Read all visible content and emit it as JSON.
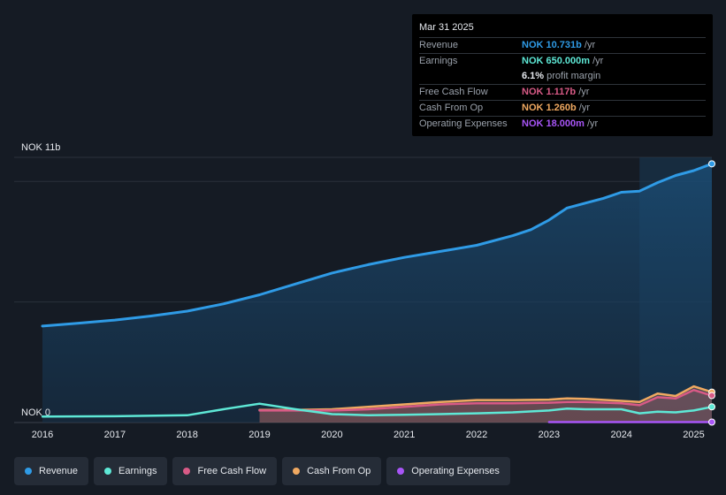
{
  "tooltip": {
    "date": "Mar 31 2025",
    "rows": [
      {
        "label": "Revenue",
        "value": "NOK 10.731b",
        "unit": "/yr",
        "color": "#2f9be6"
      },
      {
        "label": "Earnings",
        "value": "NOK 650.000m",
        "unit": "/yr",
        "color": "#5ee8d6"
      },
      {
        "label": "",
        "value": "6.1%",
        "unit": "profit margin",
        "color": "#e6e9ee"
      },
      {
        "label": "Free Cash Flow",
        "value": "NOK 1.117b",
        "unit": "/yr",
        "color": "#d85a86"
      },
      {
        "label": "Cash From Op",
        "value": "NOK 1.260b",
        "unit": "/yr",
        "color": "#f0a961"
      },
      {
        "label": "Operating Expenses",
        "value": "NOK 18.000m",
        "unit": "/yr",
        "color": "#a855f7"
      }
    ]
  },
  "legend": [
    {
      "label": "Revenue",
      "color": "#2f9be6"
    },
    {
      "label": "Earnings",
      "color": "#5ee8d6"
    },
    {
      "label": "Free Cash Flow",
      "color": "#d85a86"
    },
    {
      "label": "Cash From Op",
      "color": "#f0a961"
    },
    {
      "label": "Operating Expenses",
      "color": "#a855f7"
    }
  ],
  "chart_data": {
    "type": "area",
    "title": "",
    "ylabel_top": "NOK 11b",
    "ylabel_bottom": "NOK 0",
    "ylim": [
      0,
      11
    ],
    "xlim": [
      2015.8,
      2025.25
    ],
    "x_ticks": [
      "2016",
      "2017",
      "2018",
      "2019",
      "2020",
      "2021",
      "2022",
      "2023",
      "2024",
      "2025"
    ],
    "x_tick_values": [
      2016,
      2017,
      2018,
      2019,
      2020,
      2021,
      2022,
      2023,
      2024,
      2025
    ],
    "highlight_from": 2024.25,
    "series": [
      {
        "name": "Revenue",
        "color": "#2f9be6",
        "fill": true,
        "x": [
          2016,
          2016.5,
          2017,
          2017.5,
          2018,
          2018.5,
          2019,
          2019.5,
          2020,
          2020.5,
          2021,
          2021.5,
          2022,
          2022.5,
          2022.75,
          2023,
          2023.25,
          2023.5,
          2023.75,
          2024,
          2024.25,
          2024.5,
          2024.75,
          2025,
          2025.25
        ],
        "y": [
          4.0,
          4.12,
          4.25,
          4.42,
          4.62,
          4.92,
          5.3,
          5.75,
          6.2,
          6.55,
          6.85,
          7.1,
          7.35,
          7.75,
          8.0,
          8.4,
          8.9,
          9.1,
          9.3,
          9.55,
          9.6,
          9.95,
          10.25,
          10.45,
          10.731
        ]
      },
      {
        "name": "Earnings",
        "color": "#5ee8d6",
        "fill": false,
        "x": [
          2016,
          2017,
          2018,
          2018.5,
          2019,
          2019.5,
          2020,
          2020.5,
          2021,
          2021.5,
          2022,
          2022.5,
          2023,
          2023.25,
          2023.5,
          2024,
          2024.25,
          2024.5,
          2024.75,
          2025,
          2025.25
        ],
        "y": [
          0.25,
          0.26,
          0.3,
          0.55,
          0.78,
          0.55,
          0.35,
          0.3,
          0.32,
          0.35,
          0.38,
          0.42,
          0.5,
          0.58,
          0.55,
          0.55,
          0.38,
          0.45,
          0.42,
          0.5,
          0.65
        ]
      },
      {
        "name": "Free Cash Flow",
        "color": "#d85a86",
        "fill": true,
        "x": [
          2019,
          2019.5,
          2020,
          2020.5,
          2021,
          2021.5,
          2022,
          2022.5,
          2023,
          2023.25,
          2023.5,
          2024,
          2024.25,
          2024.5,
          2024.75,
          2025,
          2025.25
        ],
        "y": [
          0.5,
          0.5,
          0.5,
          0.55,
          0.65,
          0.75,
          0.8,
          0.8,
          0.82,
          0.85,
          0.85,
          0.8,
          0.72,
          1.05,
          1.0,
          1.35,
          1.117
        ]
      },
      {
        "name": "Cash From Op",
        "color": "#f0a961",
        "fill": true,
        "x": [
          2019,
          2019.5,
          2020,
          2020.5,
          2021,
          2021.5,
          2022,
          2022.5,
          2023,
          2023.25,
          2023.5,
          2024,
          2024.25,
          2024.5,
          2024.75,
          2025,
          2025.25
        ],
        "y": [
          0.52,
          0.52,
          0.55,
          0.65,
          0.75,
          0.85,
          0.93,
          0.93,
          0.95,
          1.0,
          0.98,
          0.9,
          0.85,
          1.2,
          1.1,
          1.5,
          1.26
        ]
      },
      {
        "name": "Operating Expenses",
        "color": "#a855f7",
        "fill": false,
        "x": [
          2023,
          2024,
          2025,
          2025.25
        ],
        "y": [
          0.018,
          0.018,
          0.018,
          0.018
        ]
      }
    ]
  }
}
